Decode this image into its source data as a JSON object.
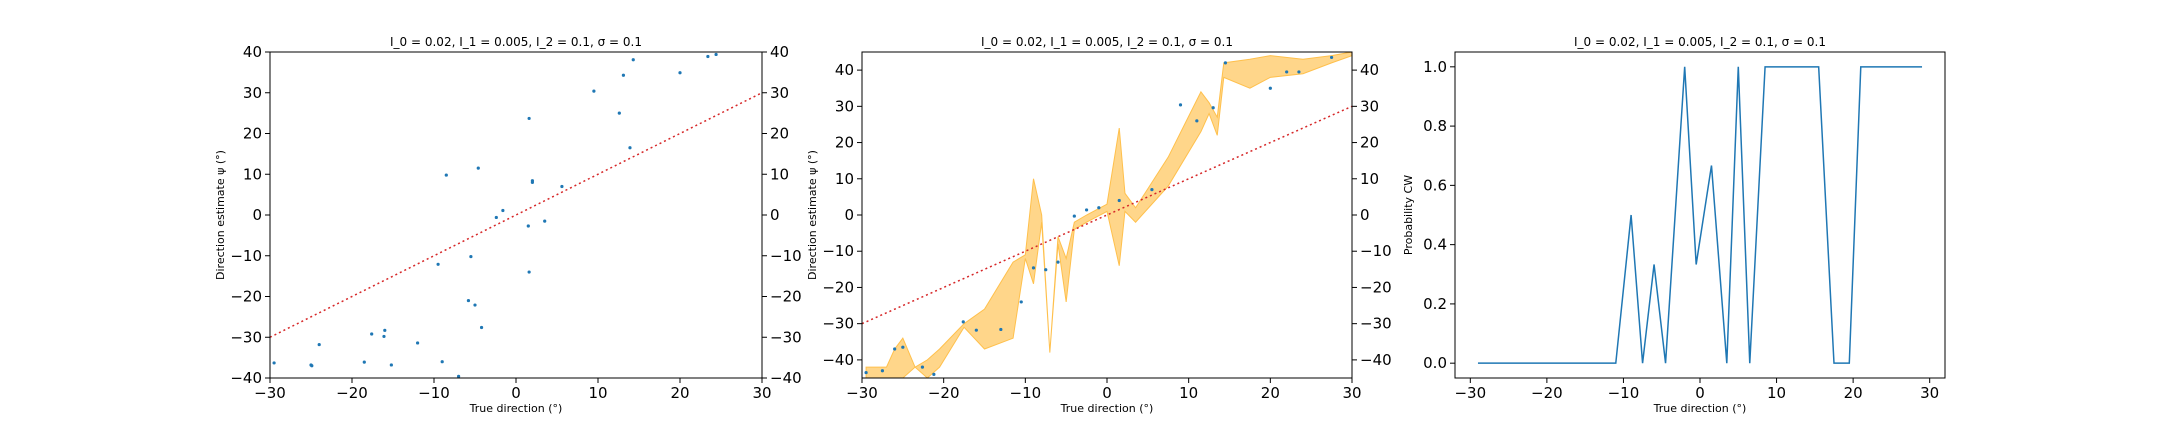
{
  "figure": {
    "background": "#ffffff"
  },
  "chart_data": [
    {
      "type": "scatter",
      "title": "I_0 = 0.02, I_1 = 0.005, I_2 = 0.1, σ = 0.1",
      "xlabel": "True direction (°)",
      "ylabel": "Direction estimate ψ (°)",
      "xlim": [
        -30,
        30
      ],
      "ylim": [
        -40,
        40
      ],
      "xticks": [
        -30,
        -20,
        -10,
        0,
        10,
        20,
        30
      ],
      "yticks": [
        -40,
        -30,
        -20,
        -10,
        0,
        10,
        20,
        30,
        40
      ],
      "right_yticks": [
        -40,
        -30,
        -20,
        -10,
        0,
        10,
        20,
        30,
        40
      ],
      "grid": false,
      "colors": {
        "points": "#1f77b4",
        "identity": "#d62728"
      },
      "identity_line": {
        "style": "dotted",
        "from": [
          -30,
          -30
        ],
        "to": [
          30,
          30
        ]
      },
      "points": [
        {
          "x": -29.5,
          "y": -36.3
        },
        {
          "x": -25.0,
          "y": -36.8
        },
        {
          "x": -24.9,
          "y": -37.0
        },
        {
          "x": -24.0,
          "y": -31.8
        },
        {
          "x": -18.5,
          "y": -36.1
        },
        {
          "x": -17.6,
          "y": -29.2
        },
        {
          "x": -16.1,
          "y": -29.8
        },
        {
          "x": -16.0,
          "y": -28.3
        },
        {
          "x": -15.2,
          "y": -36.8
        },
        {
          "x": -12.0,
          "y": -31.4
        },
        {
          "x": -9.5,
          "y": -12.1
        },
        {
          "x": -9.0,
          "y": -36.0
        },
        {
          "x": -8.5,
          "y": 9.8
        },
        {
          "x": -7.0,
          "y": -39.6
        },
        {
          "x": -5.8,
          "y": -21.0
        },
        {
          "x": -5.5,
          "y": -10.2
        },
        {
          "x": -5.0,
          "y": -22.1
        },
        {
          "x": -4.6,
          "y": 11.5
        },
        {
          "x": -4.2,
          "y": -27.6
        },
        {
          "x": -2.4,
          "y": -0.6
        },
        {
          "x": -1.6,
          "y": 1.1
        },
        {
          "x": 1.5,
          "y": -2.7
        },
        {
          "x": 1.6,
          "y": -14.0
        },
        {
          "x": 1.6,
          "y": 23.7
        },
        {
          "x": 2.0,
          "y": 8.0
        },
        {
          "x": 2.0,
          "y": 8.4
        },
        {
          "x": 3.5,
          "y": -1.5
        },
        {
          "x": 5.6,
          "y": 7.0
        },
        {
          "x": 9.5,
          "y": 30.4
        },
        {
          "x": 12.6,
          "y": 25.0
        },
        {
          "x": 13.1,
          "y": 34.3
        },
        {
          "x": 13.9,
          "y": 16.5
        },
        {
          "x": 14.3,
          "y": 38.1
        },
        {
          "x": 20.0,
          "y": 34.9
        },
        {
          "x": 23.4,
          "y": 38.9
        },
        {
          "x": 24.4,
          "y": 39.4
        }
      ]
    },
    {
      "type": "scatter",
      "title": "I_0 = 0.02, I_1 = 0.005, I_2 = 0.1, σ = 0.1",
      "xlabel": "True direction (°)",
      "ylabel": "Direction estimate ψ (°)",
      "xlim": [
        -30,
        30
      ],
      "ylim": [
        -45,
        45
      ],
      "xticks": [
        -30,
        -20,
        -10,
        0,
        10,
        20,
        30
      ],
      "yticks": [
        -40,
        -30,
        -20,
        -10,
        0,
        10,
        20,
        30,
        40
      ],
      "right_yticks": [
        -40,
        -30,
        -20,
        -10,
        0,
        10,
        20,
        30,
        40
      ],
      "grid": false,
      "colors": {
        "points": "#1f77b4",
        "identity": "#d62728",
        "band": "#ffc04c"
      },
      "identity_line": {
        "style": "dotted",
        "from": [
          -30,
          -30
        ],
        "to": [
          30,
          30
        ]
      },
      "band": [
        {
          "x": -29.5,
          "lo": -46,
          "hi": -42
        },
        {
          "x": -27.0,
          "lo": -45,
          "hi": -42
        },
        {
          "x": -26.0,
          "lo": -46,
          "hi": -37
        },
        {
          "x": -25.0,
          "lo": -46,
          "hi": -34
        },
        {
          "x": -23.5,
          "lo": -42,
          "hi": -42
        },
        {
          "x": -22.0,
          "lo": -45,
          "hi": -40
        },
        {
          "x": -20.5,
          "lo": -42,
          "hi": -37
        },
        {
          "x": -17.5,
          "lo": -31,
          "hi": -30
        },
        {
          "x": -15.0,
          "lo": -37,
          "hi": -26
        },
        {
          "x": -11.5,
          "lo": -34,
          "hi": -13
        },
        {
          "x": -10.0,
          "lo": -12,
          "hi": -11
        },
        {
          "x": -9.0,
          "lo": -19,
          "hi": 10
        },
        {
          "x": -8.0,
          "lo": -2,
          "hi": 0
        },
        {
          "x": -7.0,
          "lo": -38,
          "hi": -38
        },
        {
          "x": -6.0,
          "lo": -8,
          "hi": -6
        },
        {
          "x": -5.0,
          "lo": -24,
          "hi": -12
        },
        {
          "x": -4.0,
          "lo": -4,
          "hi": -2
        },
        {
          "x": -2.5,
          "lo": -2,
          "hi": 0
        },
        {
          "x": 0.0,
          "lo": 1,
          "hi": 3
        },
        {
          "x": 1.5,
          "lo": -14,
          "hi": 24
        },
        {
          "x": 2.2,
          "lo": 1,
          "hi": 6
        },
        {
          "x": 3.5,
          "lo": -2,
          "hi": 2
        },
        {
          "x": 7.5,
          "lo": 8,
          "hi": 16
        },
        {
          "x": 11.5,
          "lo": 23,
          "hi": 34
        },
        {
          "x": 12.5,
          "lo": 28,
          "hi": 31
        },
        {
          "x": 13.5,
          "lo": 22,
          "hi": 27
        },
        {
          "x": 14.3,
          "lo": 38,
          "hi": 42
        },
        {
          "x": 17.5,
          "lo": 35,
          "hi": 43
        },
        {
          "x": 20.0,
          "lo": 38,
          "hi": 44
        },
        {
          "x": 24.0,
          "lo": 39,
          "hi": 43
        },
        {
          "x": 27.5,
          "lo": 42,
          "hi": 44
        },
        {
          "x": 30.0,
          "lo": 44,
          "hi": 45
        }
      ],
      "points": [
        {
          "x": -29.5,
          "y": -43.5
        },
        {
          "x": -27.5,
          "y": -43.0
        },
        {
          "x": -26.0,
          "y": -37.0
        },
        {
          "x": -25.0,
          "y": -36.5
        },
        {
          "x": -22.6,
          "y": -42.0
        },
        {
          "x": -21.2,
          "y": -44.0
        },
        {
          "x": -17.6,
          "y": -29.5
        },
        {
          "x": -16.0,
          "y": -31.8
        },
        {
          "x": -13.0,
          "y": -31.6
        },
        {
          "x": -10.5,
          "y": -24.0
        },
        {
          "x": -9.0,
          "y": -14.6
        },
        {
          "x": -7.5,
          "y": -15.1
        },
        {
          "x": -6.0,
          "y": -13.0
        },
        {
          "x": -4.0,
          "y": -0.3
        },
        {
          "x": -2.5,
          "y": 1.4
        },
        {
          "x": -1.0,
          "y": 2.0
        },
        {
          "x": 1.5,
          "y": 4.0
        },
        {
          "x": 5.5,
          "y": 7.0
        },
        {
          "x": 9.0,
          "y": 30.4
        },
        {
          "x": 11.0,
          "y": 26.0
        },
        {
          "x": 13.0,
          "y": 29.6
        },
        {
          "x": 14.5,
          "y": 42.0
        },
        {
          "x": 20.0,
          "y": 35.0
        },
        {
          "x": 22.0,
          "y": 39.5
        },
        {
          "x": 23.5,
          "y": 39.5
        },
        {
          "x": 27.5,
          "y": 43.5
        }
      ]
    },
    {
      "type": "line",
      "title": "I_0 = 0.02, I_1 = 0.005, I_2 = 0.1, σ = 0.1",
      "xlabel": "True direction (°)",
      "ylabel": "Probability CW",
      "xlim": [
        -32,
        32
      ],
      "ylim": [
        -0.05,
        1.05
      ],
      "xticks": [
        -30,
        -20,
        -10,
        0,
        10,
        20,
        30
      ],
      "yticks": [
        0.0,
        0.2,
        0.4,
        0.6,
        0.8,
        1.0
      ],
      "ytick_labels": [
        "0.0",
        "0.2",
        "0.4",
        "0.6",
        "0.8",
        "1.0"
      ],
      "grid": false,
      "colors": {
        "line": "#1f77b4"
      },
      "series": [
        {
          "x": [
            -29,
            -11,
            -9,
            -7.5,
            -6,
            -4.5,
            -2,
            -0.5,
            1.5,
            3.5,
            5,
            6.5,
            8.5,
            11,
            13,
            15.5,
            17.5,
            19.5,
            21,
            23,
            25,
            27,
            29
          ],
          "y": [
            0,
            0,
            0.5,
            0,
            0.333,
            0,
            1.0,
            0.333,
            0.667,
            0,
            1.0,
            0,
            1.0,
            1.0,
            1.0,
            1.0,
            0,
            0,
            1.0,
            1.0,
            1.0,
            1.0,
            1.0
          ]
        }
      ]
    }
  ]
}
